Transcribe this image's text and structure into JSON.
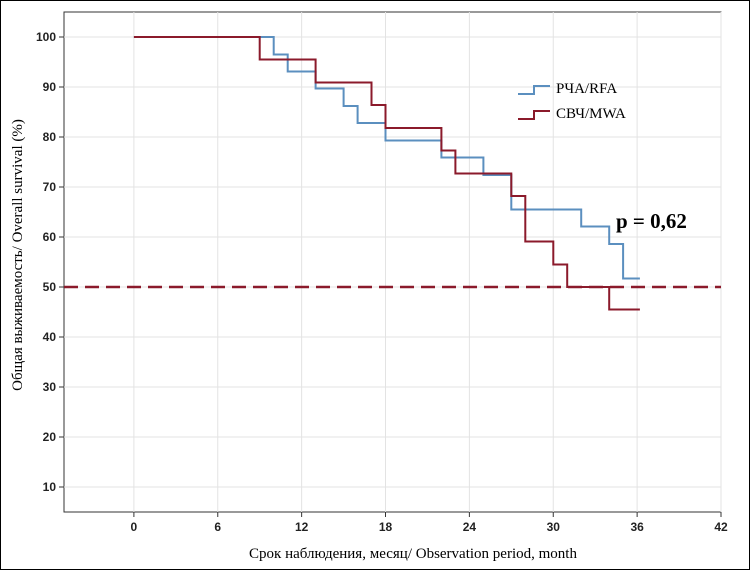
{
  "chart_data": {
    "type": "line",
    "title": "",
    "xlabel": "Срок наблюдения, месяц/ Observation period, month",
    "ylabel": "Общая выживаемость/ Overall survival (%)",
    "xlim": [
      -5,
      42
    ],
    "ylim": [
      5,
      105
    ],
    "x_ticks": [
      0,
      6,
      12,
      18,
      24,
      30,
      36,
      42
    ],
    "y_ticks": [
      10,
      20,
      30,
      40,
      50,
      60,
      70,
      80,
      90,
      100
    ],
    "grid": true,
    "legend_position": "top-right",
    "annotation": "p = 0,62",
    "reference_line": {
      "y": 50,
      "style": "dashed",
      "color": "#8b1a2b"
    },
    "series": [
      {
        "name": "РЧА/RFA",
        "color": "#5b8fbf",
        "x": [
          0,
          10,
          10,
          11,
          11,
          13,
          13,
          15,
          15,
          16,
          16,
          18,
          18,
          22,
          22,
          25,
          25,
          27,
          27,
          32,
          32,
          34,
          34,
          35,
          35,
          36.2
        ],
        "y": [
          100,
          100,
          96.5,
          96.5,
          93.1,
          93.1,
          89.7,
          89.7,
          86.2,
          86.2,
          82.8,
          82.8,
          79.3,
          79.3,
          75.9,
          75.9,
          72.4,
          72.4,
          65.5,
          65.5,
          62.1,
          62.1,
          58.6,
          58.6,
          51.7,
          51.7
        ]
      },
      {
        "name": "СВЧ/MWA",
        "color": "#8b1a2b",
        "x": [
          0,
          9,
          9,
          13,
          13,
          17,
          17,
          18,
          18,
          22,
          22,
          23,
          23,
          27,
          27,
          28,
          28,
          30,
          30,
          31,
          31,
          34,
          34,
          36.2
        ],
        "y": [
          100,
          100,
          95.5,
          95.5,
          90.9,
          90.9,
          86.4,
          86.4,
          81.8,
          81.8,
          77.3,
          77.3,
          72.7,
          72.7,
          68.2,
          68.2,
          59.1,
          59.1,
          54.5,
          54.5,
          50,
          50,
          45.5,
          45.5
        ]
      }
    ]
  }
}
